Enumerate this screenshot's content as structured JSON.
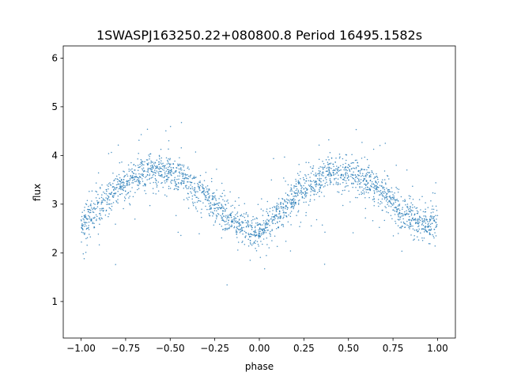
{
  "chart_data": {
    "type": "scatter",
    "title": "1SWASPJ163250.22+080800.8 Period 16495.1582s",
    "xlabel": "phase",
    "ylabel": "flux",
    "xlim": [
      -1.1,
      1.1
    ],
    "ylim": [
      0.25,
      6.25
    ],
    "xticks": [
      -1.0,
      -0.75,
      -0.5,
      -0.25,
      0.0,
      0.25,
      0.5,
      0.75,
      1.0
    ],
    "xtick_labels": [
      "−1.00",
      "−0.75",
      "−0.50",
      "−0.25",
      "0.00",
      "0.25",
      "0.50",
      "0.75",
      "1.00"
    ],
    "yticks": [
      1,
      2,
      3,
      4,
      5,
      6
    ],
    "ytick_labels": [
      "1",
      "2",
      "3",
      "4",
      "5",
      "6"
    ],
    "grid": false,
    "legend": "none",
    "marker_color": "#1f77b4",
    "series": [
      {
        "phase": [
          -1.0,
          -0.9,
          -0.8,
          -0.7,
          -0.6,
          -0.5,
          -0.4,
          -0.3,
          -0.2,
          -0.1,
          0.0,
          0.1,
          0.2,
          0.3,
          0.4,
          0.5,
          0.6,
          0.7,
          0.8,
          0.9,
          1.0
        ],
        "flux": [
          2.55,
          2.9,
          3.3,
          3.55,
          3.7,
          3.65,
          3.45,
          3.15,
          2.8,
          2.5,
          2.45,
          2.75,
          3.15,
          3.45,
          3.65,
          3.65,
          3.5,
          3.2,
          2.85,
          2.6,
          2.55
        ]
      }
    ]
  }
}
